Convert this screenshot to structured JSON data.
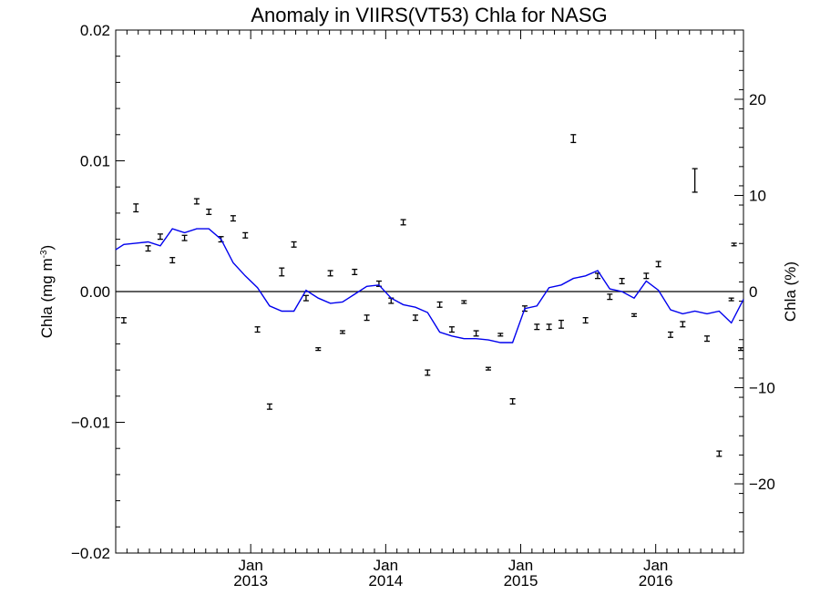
{
  "chart_data": {
    "type": "scatter",
    "title": "Anomaly in VIIRS(VT53) Chla for NASG",
    "ylabel": "Chla (mg m",
    "ylabel_sup": "-3",
    "ylabel_close": ")",
    "y2label": "Chla (%)",
    "xlim": [
      2012.0,
      2016.65
    ],
    "ylim": [
      -0.02,
      0.02
    ],
    "y2lim": [
      -27.2,
      27.2
    ],
    "grid": false,
    "zero_line": true,
    "y_ticks": [
      {
        "value": -0.02,
        "label": "−0.02"
      },
      {
        "value": -0.01,
        "label": "−0.01"
      },
      {
        "value": 0.0,
        "label": "0.00"
      },
      {
        "value": 0.01,
        "label": "0.01"
      },
      {
        "value": 0.02,
        "label": "0.02"
      }
    ],
    "y2_ticks": [
      {
        "value": -20,
        "label": "−20"
      },
      {
        "value": -10,
        "label": "−10"
      },
      {
        "value": 0,
        "label": "0"
      },
      {
        "value": 10,
        "label": "10"
      },
      {
        "value": 20,
        "label": "20"
      }
    ],
    "x_ticks": [
      {
        "value": 2013.0,
        "month": "Jan",
        "year": "2013"
      },
      {
        "value": 2014.0,
        "month": "Jan",
        "year": "2014"
      },
      {
        "value": 2015.0,
        "month": "Jan",
        "year": "2015"
      },
      {
        "value": 2016.0,
        "month": "Jan",
        "year": "2016"
      }
    ],
    "colors": {
      "line": "#0000ee",
      "points": "#000000",
      "axes": "#000000"
    },
    "series": [
      {
        "type": "errorbar",
        "x": [
          2012.06,
          2012.15,
          2012.24,
          2012.33,
          2012.42,
          2012.51,
          2012.6,
          2012.69,
          2012.78,
          2012.87,
          2012.96,
          2013.05,
          2013.14,
          2013.23,
          2013.32,
          2013.41,
          2013.5,
          2013.59,
          2013.68,
          2013.77,
          2013.86,
          2013.95,
          2014.04,
          2014.13,
          2014.22,
          2014.31,
          2014.4,
          2014.49,
          2014.58,
          2014.67,
          2014.76,
          2014.85,
          2014.94,
          2015.03,
          2015.12,
          2015.21,
          2015.3,
          2015.39,
          2015.48,
          2015.57,
          2015.66,
          2015.75,
          2015.84,
          2015.93,
          2016.02,
          2016.11,
          2016.2,
          2016.29,
          2016.38,
          2016.47,
          2016.56
        ],
        "y": [
          -0.0022,
          0.0064,
          0.0033,
          0.0042,
          0.0024,
          0.0041,
          0.0069,
          0.0061,
          0.004,
          0.0056,
          0.0043,
          -0.0029,
          -0.0088,
          0.0015,
          0.0036,
          -0.0005,
          -0.0044,
          0.0014,
          -0.0031,
          0.0015,
          -0.002,
          0.0006,
          -0.0007,
          0.0053,
          -0.002,
          -0.0062,
          -0.001,
          -0.0029,
          -0.0008,
          -0.0032,
          -0.0059,
          -0.0033,
          -0.0084,
          -0.0013,
          -0.0027,
          -0.0027,
          -0.0025,
          0.0117,
          -0.0022,
          0.0012,
          -0.0004,
          0.0008,
          -0.0018,
          0.0012,
          0.0021,
          -0.0033,
          -0.0025,
          0.0085,
          -0.0036,
          -0.0124,
          -0.0006
        ],
        "yerr": [
          0.0002,
          0.0003,
          0.0002,
          0.0002,
          0.0002,
          0.0002,
          0.0002,
          0.0002,
          0.0002,
          0.0002,
          0.0002,
          0.0002,
          0.0002,
          0.0003,
          0.0002,
          0.0002,
          0.0001,
          0.0002,
          0.0001,
          0.0002,
          0.0002,
          0.0002,
          0.0002,
          0.0002,
          0.0002,
          0.0002,
          0.0002,
          0.0002,
          0.0001,
          0.0002,
          0.0001,
          0.0001,
          0.0002,
          0.0002,
          0.0002,
          0.0002,
          0.0003,
          0.0003,
          0.0002,
          0.0002,
          0.0002,
          0.0002,
          0.0001,
          0.0002,
          0.0002,
          0.0002,
          0.0002,
          0.0009,
          0.0002,
          0.0002,
          0.0001
        ]
      },
      {
        "type": "errorbar",
        "x": [
          2016.58,
          2016.63
        ],
        "y": [
          0.0036,
          -0.0044
        ],
        "yerr": [
          0.0001,
          0.0001
        ]
      },
      {
        "type": "line",
        "x": [
          2012.0,
          2012.06,
          2012.15,
          2012.24,
          2012.33,
          2012.42,
          2012.51,
          2012.6,
          2012.69,
          2012.78,
          2012.87,
          2012.96,
          2013.05,
          2013.14,
          2013.23,
          2013.32,
          2013.41,
          2013.5,
          2013.59,
          2013.68,
          2013.77,
          2013.86,
          2013.95,
          2014.04,
          2014.13,
          2014.22,
          2014.31,
          2014.4,
          2014.49,
          2014.58,
          2014.67,
          2014.76,
          2014.85,
          2014.94,
          2015.03,
          2015.12,
          2015.21,
          2015.3,
          2015.39,
          2015.48,
          2015.57,
          2015.66,
          2015.75,
          2015.84,
          2015.93,
          2016.02,
          2016.11,
          2016.2,
          2016.29,
          2016.38,
          2016.47,
          2016.56,
          2016.65
        ],
        "y": [
          0.0032,
          0.0036,
          0.0037,
          0.0038,
          0.0035,
          0.0048,
          0.0045,
          0.0048,
          0.0048,
          0.004,
          0.0022,
          0.0012,
          0.0003,
          -0.0011,
          -0.0015,
          -0.0015,
          0.0001,
          -0.0005,
          -0.0009,
          -0.0008,
          -0.0002,
          0.0004,
          0.0005,
          -0.0005,
          -0.001,
          -0.0012,
          -0.0016,
          -0.0031,
          -0.0034,
          -0.0036,
          -0.0036,
          -0.0037,
          -0.0039,
          -0.0039,
          -0.0013,
          -0.0011,
          0.0003,
          0.0005,
          0.001,
          0.0012,
          0.0016,
          0.0002,
          0.0,
          -0.0005,
          0.0008,
          0.0001,
          -0.0014,
          -0.0017,
          -0.0015,
          -0.0017,
          -0.0015,
          -0.0024,
          -0.0006
        ]
      }
    ]
  }
}
